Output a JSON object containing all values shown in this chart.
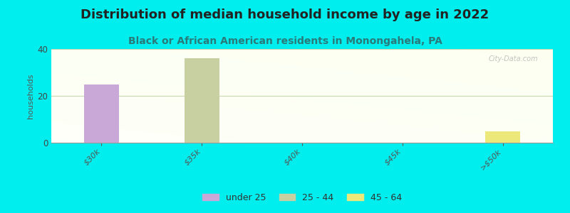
{
  "title": "Distribution of median household income by age in 2022",
  "subtitle": "Black or African American residents in Monongahela, PA",
  "xlabel_categories": [
    "$30k",
    "$35k",
    "$40k",
    "$45k",
    ">$50k"
  ],
  "ylabel": "households",
  "ylim": [
    0,
    40
  ],
  "yticks": [
    0,
    20,
    40
  ],
  "background_outer": "#00EEEE",
  "watermark": "City-Data.com",
  "bars": [
    {
      "category_idx": 0,
      "age_group": "under 25",
      "value": 25,
      "color": "#c9a8d8"
    },
    {
      "category_idx": 1,
      "age_group": "25 - 44",
      "value": 36,
      "color": "#c8cfa0"
    },
    {
      "category_idx": 4,
      "age_group": "45 - 64",
      "value": 5,
      "color": "#ede87a"
    }
  ],
  "legend": [
    {
      "label": "under 25",
      "color": "#c9a8d8"
    },
    {
      "label": "25 - 44",
      "color": "#c8cfa0"
    },
    {
      "label": "45 - 64",
      "color": "#ede87a"
    }
  ],
  "title_fontsize": 13,
  "subtitle_fontsize": 10,
  "bar_width": 0.35,
  "x_positions": [
    0,
    1,
    2,
    3,
    4
  ],
  "grid_color": "#c8d8b0",
  "grid_linewidth": 0.8,
  "title_color": "#222222",
  "subtitle_color": "#2a7a7a"
}
